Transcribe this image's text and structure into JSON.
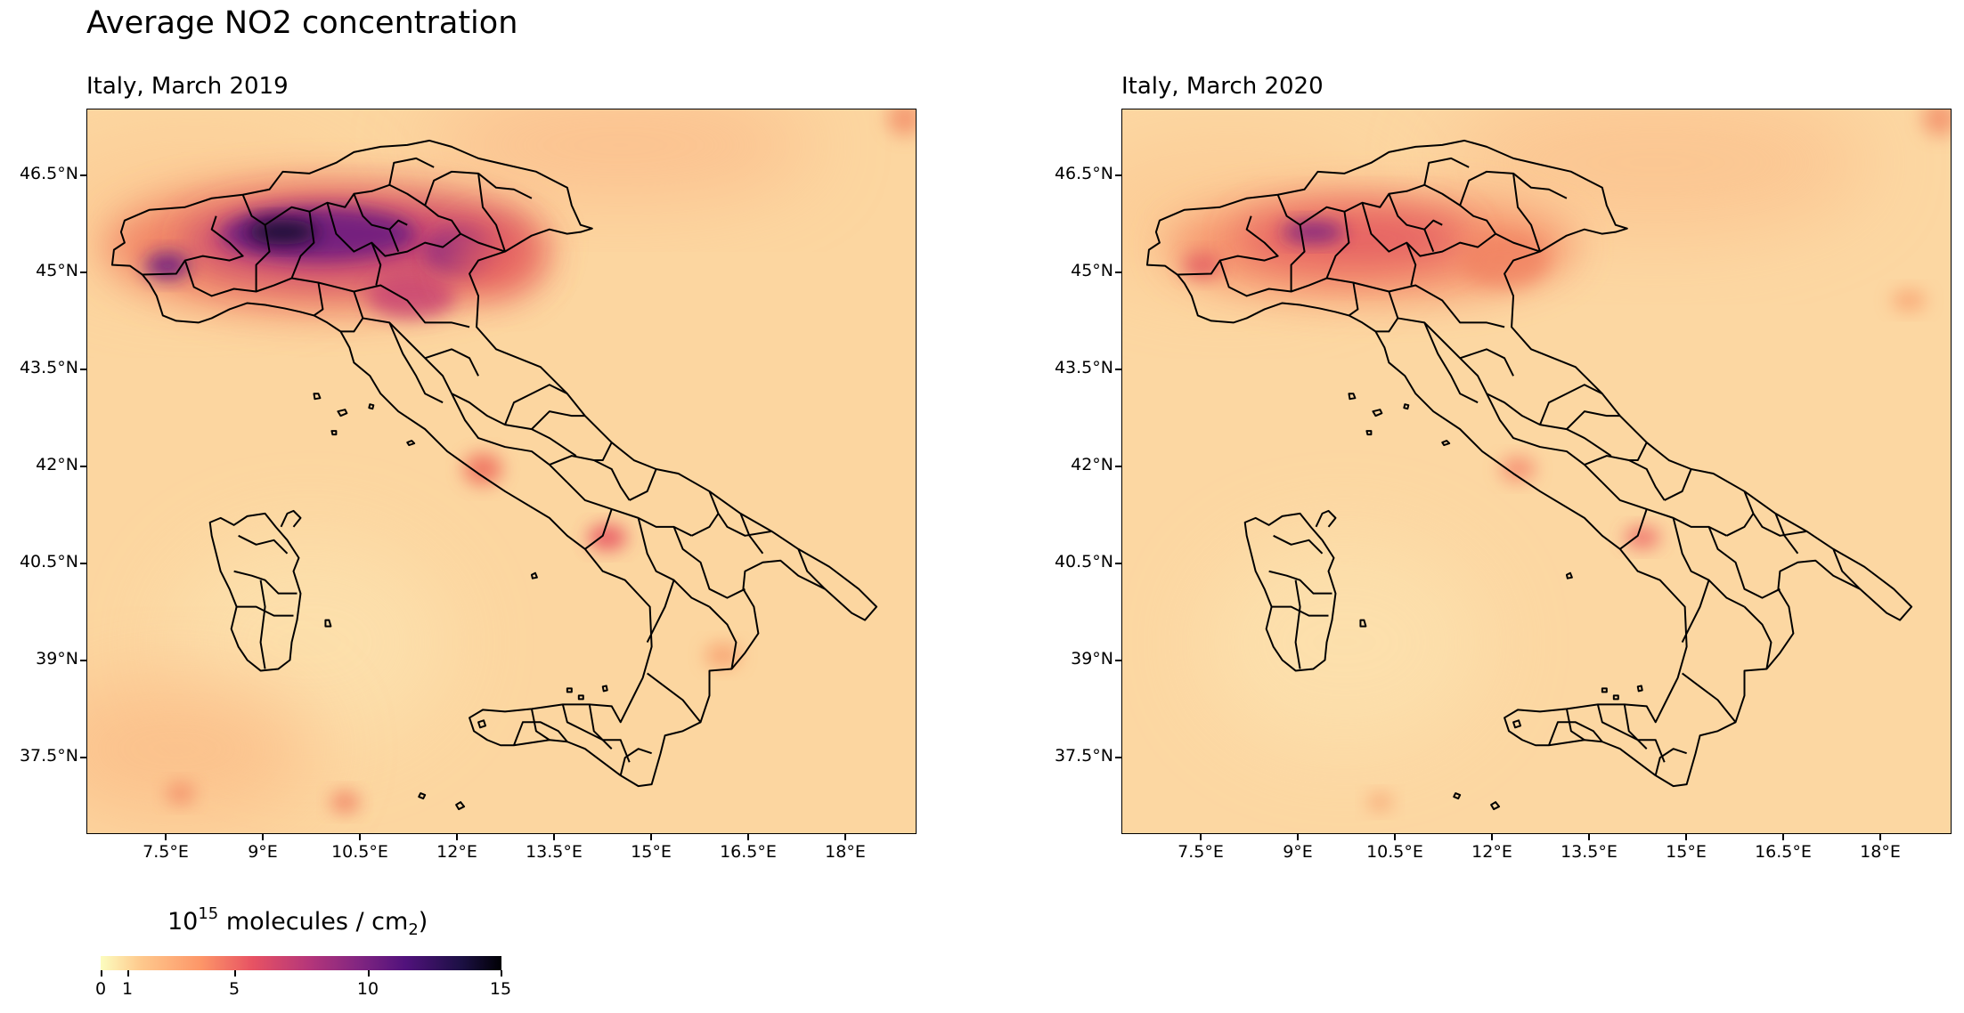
{
  "suptitle": "Average NO2 concentration",
  "panels": [
    {
      "title": "Italy, March 2019",
      "year": 2019
    },
    {
      "title": "Italy, March 2020",
      "year": 2020
    }
  ],
  "axes": {
    "lat_ticks": [
      "46.5°N",
      "45°N",
      "43.5°N",
      "42°N",
      "40.5°N",
      "39°N",
      "37.5°N"
    ],
    "lon_ticks": [
      "7.5°E",
      "9°E",
      "10.5°E",
      "12°E",
      "13.5°E",
      "15°E",
      "16.5°E",
      "18°E"
    ]
  },
  "colorbar": {
    "label_base": "10",
    "label_exp": "15",
    "label_mid": " molecules / cm",
    "label_sub": "2",
    "label_end": ")",
    "ticks": [
      "0",
      "1",
      "5",
      "10",
      "15"
    ],
    "colormap": "magma_r",
    "range": [
      0,
      15
    ]
  },
  "colors": {
    "background": "#fcd9a0",
    "low": "#fcfdbf",
    "high": "#000004",
    "borders": "#000000"
  }
}
